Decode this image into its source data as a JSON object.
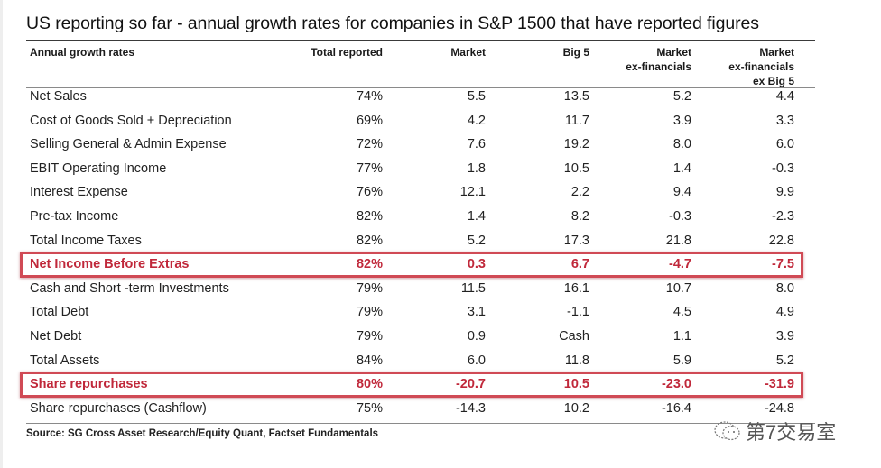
{
  "title": "US reporting so far  - annual growth rates for companies in S&P 1500 that have reported figures",
  "watermark": "第7交易室",
  "source": "Source: SG Cross Asset Research/Equity Quant, Factset Fundamentals",
  "highlight_color": "#c0283a",
  "columns": [
    {
      "label": "Annual growth rates"
    },
    {
      "label": "Total reported"
    },
    {
      "label": "Market"
    },
    {
      "label": "Big 5"
    },
    {
      "label": "Market\nex-financials"
    },
    {
      "label": "Market\nex-financials\nex Big 5"
    }
  ],
  "header": {
    "c0": "Annual growth rates",
    "c1": "Total reported",
    "c2": "Market",
    "c3": "Big 5",
    "c4_l1": "Market",
    "c4_l2": "ex-financials",
    "c5_l1": "Market",
    "c5_l2": "ex-financials",
    "c5_l3": "ex Big 5"
  },
  "rows": [
    {
      "label": "Net Sales",
      "total": "74%",
      "market": "5.5",
      "big5": "13.5",
      "mexfin": "5.2",
      "mexfinbig5": "4.4",
      "highlight": false
    },
    {
      "label": "Cost of Goods Sold + Depreciation",
      "total": "69%",
      "market": "4.2",
      "big5": "11.7",
      "mexfin": "3.9",
      "mexfinbig5": "3.3",
      "highlight": false
    },
    {
      "label": "Selling General & Admin Expense",
      "total": "72%",
      "market": "7.6",
      "big5": "19.2",
      "mexfin": "8.0",
      "mexfinbig5": "6.0",
      "highlight": false
    },
    {
      "label": "EBIT Operating Income",
      "total": "77%",
      "market": "1.8",
      "big5": "10.5",
      "mexfin": "1.4",
      "mexfinbig5": "-0.3",
      "highlight": false
    },
    {
      "label": "Interest Expense",
      "total": "76%",
      "market": "12.1",
      "big5": "2.2",
      "mexfin": "9.4",
      "mexfinbig5": "9.9",
      "highlight": false
    },
    {
      "label": "Pre-tax Income",
      "total": "82%",
      "market": "1.4",
      "big5": "8.2",
      "mexfin": "-0.3",
      "mexfinbig5": "-2.3",
      "highlight": false
    },
    {
      "label": "Total Income Taxes",
      "total": "82%",
      "market": "5.2",
      "big5": "17.3",
      "mexfin": "21.8",
      "mexfinbig5": "22.8",
      "highlight": false
    },
    {
      "label": "Net Income Before Extras",
      "total": "82%",
      "market": "0.3",
      "big5": "6.7",
      "mexfin": "-4.7",
      "mexfinbig5": "-7.5",
      "highlight": true
    },
    {
      "label": "Cash and Short -term Investments",
      "total": "79%",
      "market": "11.5",
      "big5": "16.1",
      "mexfin": "10.7",
      "mexfinbig5": "8.0",
      "highlight": false
    },
    {
      "label": "Total Debt",
      "total": "79%",
      "market": "3.1",
      "big5": "-1.1",
      "mexfin": "4.5",
      "mexfinbig5": "4.9",
      "highlight": false
    },
    {
      "label": "Net Debt",
      "total": "79%",
      "market": "0.9",
      "big5": "Cash",
      "mexfin": "1.1",
      "mexfinbig5": "3.9",
      "highlight": false
    },
    {
      "label": "Total Assets",
      "total": "84%",
      "market": "6.0",
      "big5": "11.8",
      "mexfin": "5.9",
      "mexfinbig5": "5.2",
      "highlight": false
    },
    {
      "label": "Share repurchases",
      "total": "80%",
      "market": "-20.7",
      "big5": "10.5",
      "mexfin": "-23.0",
      "mexfinbig5": "-31.9",
      "highlight": true
    },
    {
      "label": "Share repurchases (Cashflow)",
      "total": "75%",
      "market": "-14.3",
      "big5": "10.2",
      "mexfin": "-16.4",
      "mexfinbig5": "-24.8",
      "highlight": false
    }
  ],
  "chart_data": {
    "type": "table",
    "title": "US reporting so far  - annual growth rates for companies in S&P 1500 that have reported figures",
    "columns": [
      "Annual growth rates",
      "Total reported",
      "Market",
      "Big 5",
      "Market ex-financials",
      "Market ex-financials ex Big 5"
    ],
    "rows": [
      [
        "Net Sales",
        "74%",
        5.5,
        13.5,
        5.2,
        4.4
      ],
      [
        "Cost of Goods Sold + Depreciation",
        "69%",
        4.2,
        11.7,
        3.9,
        3.3
      ],
      [
        "Selling General & Admin Expense",
        "72%",
        7.6,
        19.2,
        8.0,
        6.0
      ],
      [
        "EBIT Operating Income",
        "77%",
        1.8,
        10.5,
        1.4,
        -0.3
      ],
      [
        "Interest Expense",
        "76%",
        12.1,
        2.2,
        9.4,
        9.9
      ],
      [
        "Pre-tax Income",
        "82%",
        1.4,
        8.2,
        -0.3,
        -2.3
      ],
      [
        "Total Income Taxes",
        "82%",
        5.2,
        17.3,
        21.8,
        22.8
      ],
      [
        "Net Income Before Extras",
        "82%",
        0.3,
        6.7,
        -4.7,
        -7.5
      ],
      [
        "Cash and Short -term Investments",
        "79%",
        11.5,
        16.1,
        10.7,
        8.0
      ],
      [
        "Total Debt",
        "79%",
        3.1,
        -1.1,
        4.5,
        4.9
      ],
      [
        "Net Debt",
        "79%",
        0.9,
        "Cash",
        1.1,
        3.9
      ],
      [
        "Total Assets",
        "84%",
        6.0,
        11.8,
        5.9,
        5.2
      ],
      [
        "Share repurchases",
        "80%",
        -20.7,
        10.5,
        -23.0,
        -31.9
      ],
      [
        "Share repurchases (Cashflow)",
        "75%",
        -14.3,
        10.2,
        -16.4,
        -24.8
      ]
    ],
    "highlighted_rows": [
      "Net Income Before Extras",
      "Share repurchases"
    ],
    "source": "Source: SG Cross Asset Research/Equity Quant, Factset Fundamentals"
  }
}
